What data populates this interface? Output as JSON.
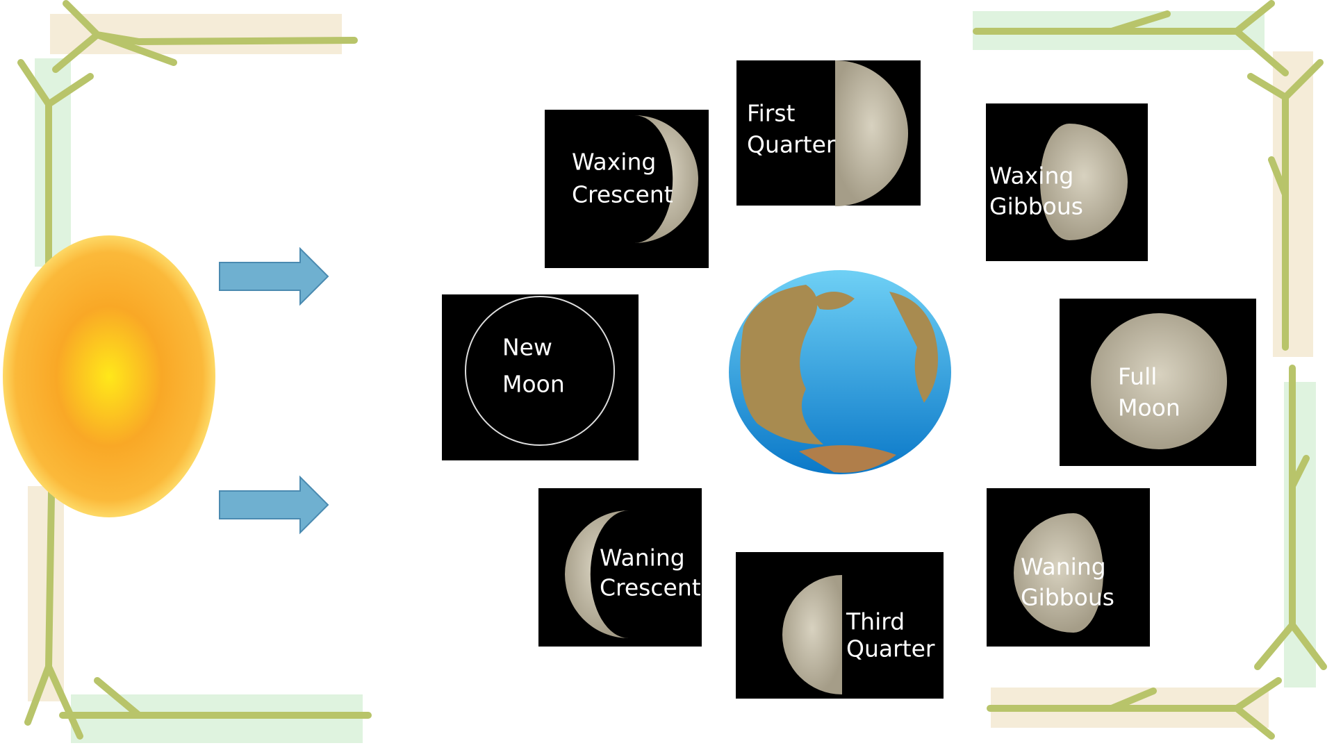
{
  "phases": [
    {
      "lines": [
        "Waxing",
        "Crescent"
      ]
    },
    {
      "lines": [
        "First",
        "Quarter"
      ]
    },
    {
      "lines": [
        "Waxing",
        "Gibbous"
      ]
    },
    {
      "lines": [
        "New",
        "Moon"
      ]
    },
    {
      "lines": [
        "Full",
        "Moon"
      ]
    },
    {
      "lines": [
        "Waning",
        "Crescent"
      ]
    },
    {
      "lines": [
        "Third",
        "Quarter"
      ]
    },
    {
      "lines": [
        "Waning",
        "Gibbous"
      ]
    }
  ]
}
